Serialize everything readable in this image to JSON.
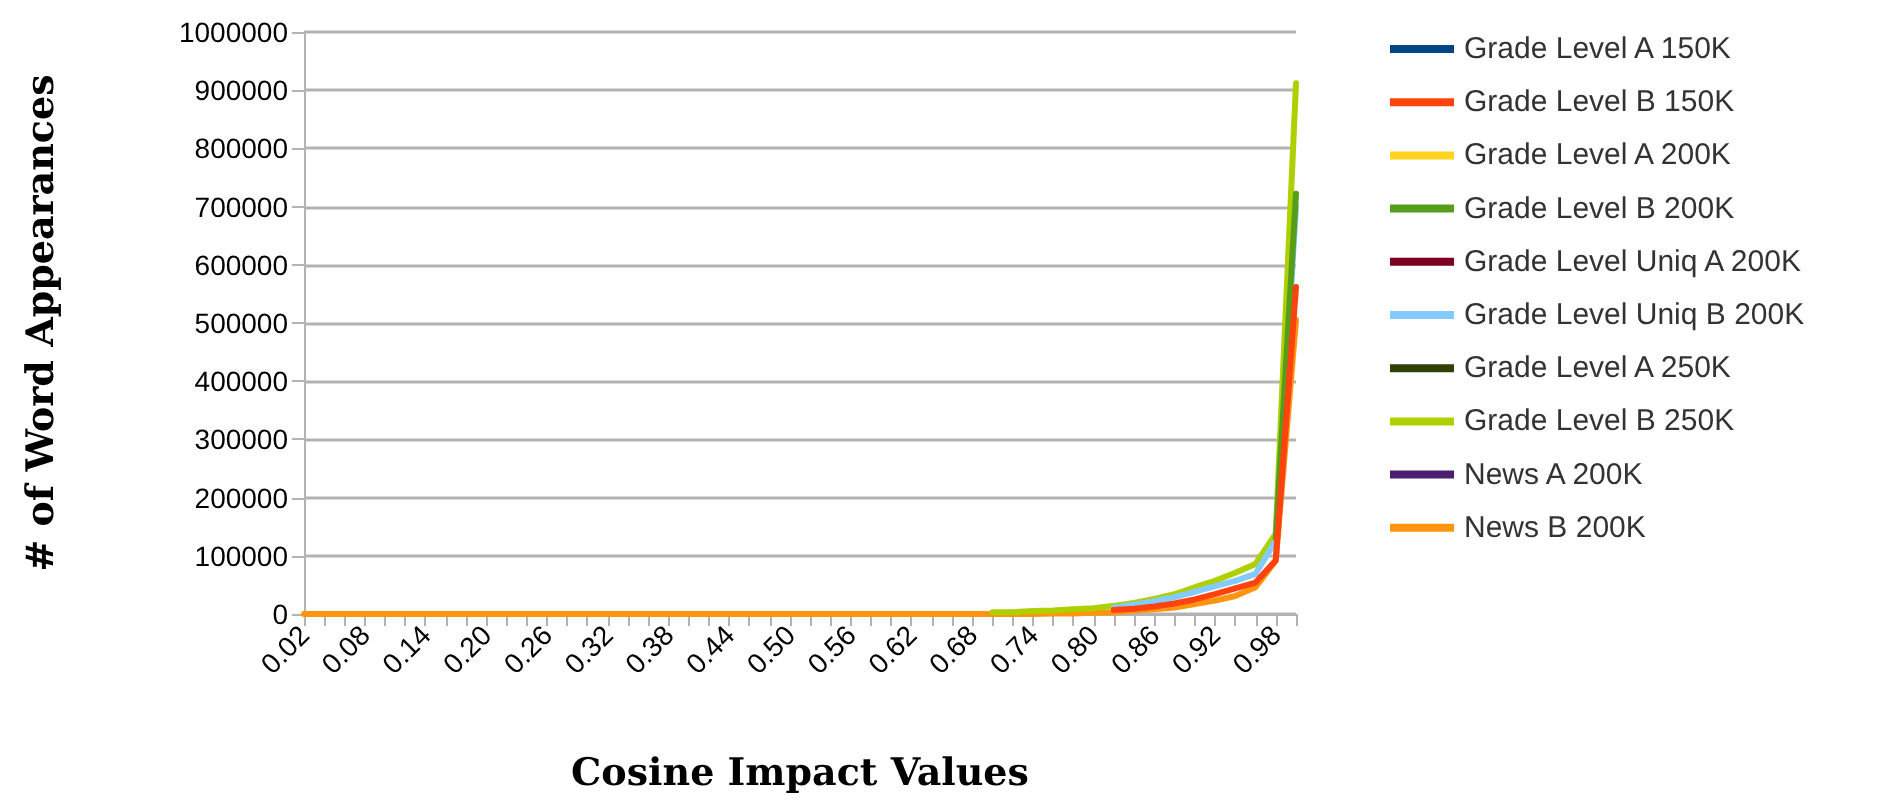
{
  "chart_data": {
    "type": "line",
    "xlabel": "Cosine Impact Values",
    "ylabel": "# of Word Appearances",
    "categories": [
      "0.02",
      null,
      null,
      "0.08",
      null,
      null,
      "0.14",
      null,
      null,
      "0.20",
      null,
      null,
      "0.26",
      null,
      null,
      "0.32",
      null,
      null,
      "0.38",
      null,
      null,
      "0.44",
      null,
      null,
      "0.50",
      null,
      null,
      "0.56",
      null,
      null,
      "0.62",
      null,
      null,
      "0.68",
      null,
      null,
      "0.74",
      null,
      null,
      "0.80",
      null,
      null,
      "0.86",
      null,
      null,
      "0.92",
      null,
      null,
      "0.98",
      null
    ],
    "series": [
      {
        "name": "Grade Level A 150K",
        "color": "#004586",
        "values": [
          null,
          null,
          null,
          null,
          null,
          null,
          null,
          null,
          null,
          null,
          null,
          null,
          null,
          null,
          null,
          null,
          null,
          null,
          null,
          null,
          null,
          null,
          null,
          null,
          null,
          null,
          null,
          null,
          null,
          null,
          null,
          null,
          null,
          null,
          null,
          null,
          null,
          null,
          null,
          null,
          null,
          null,
          null,
          null,
          null,
          null,
          null,
          null,
          null,
          null
        ]
      },
      {
        "name": "Grade Level B 150K",
        "color": "#ff420e",
        "values": [
          null,
          null,
          null,
          null,
          null,
          null,
          null,
          null,
          null,
          null,
          null,
          null,
          null,
          null,
          null,
          null,
          null,
          null,
          null,
          null,
          null,
          null,
          null,
          null,
          null,
          null,
          null,
          null,
          null,
          null,
          null,
          null,
          null,
          null,
          null,
          null,
          null,
          null,
          null,
          null,
          7000,
          9000,
          13000,
          18000,
          25000,
          34000,
          44000,
          54000,
          92000,
          562000
        ]
      },
      {
        "name": "Grade Level A 200K",
        "color": "#ffd320",
        "values": [
          null,
          null,
          null,
          null,
          null,
          null,
          null,
          null,
          null,
          null,
          null,
          null,
          null,
          null,
          null,
          null,
          null,
          null,
          null,
          null,
          null,
          null,
          null,
          null,
          null,
          null,
          null,
          null,
          null,
          null,
          null,
          null,
          null,
          null,
          null,
          null,
          null,
          null,
          null,
          null,
          null,
          null,
          null,
          null,
          null,
          null,
          null,
          null,
          null,
          null
        ]
      },
      {
        "name": "Grade Level B 200K",
        "color": "#579d1c",
        "values": [
          null,
          null,
          null,
          null,
          null,
          null,
          null,
          null,
          null,
          null,
          null,
          null,
          null,
          null,
          null,
          null,
          null,
          null,
          null,
          null,
          null,
          null,
          null,
          null,
          null,
          null,
          null,
          null,
          null,
          null,
          null,
          null,
          null,
          null,
          null,
          null,
          null,
          null,
          null,
          null,
          null,
          null,
          null,
          null,
          null,
          null,
          null,
          null,
          130000,
          722000
        ]
      },
      {
        "name": "Grade Level Uniq A 200K",
        "color": "#7e0021",
        "values": [
          null,
          null,
          null,
          null,
          null,
          null,
          null,
          null,
          null,
          null,
          null,
          null,
          null,
          null,
          null,
          null,
          null,
          null,
          null,
          null,
          null,
          null,
          null,
          null,
          null,
          null,
          null,
          null,
          null,
          null,
          null,
          null,
          null,
          null,
          null,
          null,
          null,
          null,
          null,
          null,
          null,
          null,
          null,
          null,
          null,
          null,
          null,
          null,
          null,
          null
        ]
      },
      {
        "name": "Grade Level Uniq B 200K",
        "color": "#83caff",
        "values": [
          null,
          null,
          null,
          null,
          null,
          null,
          null,
          null,
          null,
          null,
          null,
          null,
          null,
          null,
          null,
          null,
          null,
          null,
          null,
          null,
          null,
          null,
          null,
          null,
          null,
          null,
          null,
          null,
          null,
          null,
          null,
          null,
          null,
          null,
          null,
          null,
          null,
          null,
          null,
          null,
          11000,
          16000,
          22000,
          29000,
          38000,
          48000,
          57000,
          69000,
          126000,
          700000
        ]
      },
      {
        "name": "Grade Level A 250K",
        "color": "#314004",
        "values": [
          null,
          null,
          null,
          null,
          null,
          null,
          null,
          null,
          null,
          null,
          null,
          null,
          null,
          null,
          null,
          null,
          null,
          null,
          null,
          null,
          null,
          null,
          null,
          null,
          null,
          null,
          null,
          null,
          null,
          null,
          null,
          null,
          null,
          null,
          null,
          null,
          null,
          null,
          null,
          null,
          null,
          null,
          null,
          null,
          null,
          null,
          null,
          null,
          null,
          null
        ]
      },
      {
        "name": "Grade Level B 250K",
        "color": "#aecf00",
        "values": [
          null,
          null,
          null,
          null,
          null,
          null,
          null,
          null,
          null,
          null,
          null,
          null,
          null,
          null,
          null,
          null,
          null,
          null,
          null,
          null,
          null,
          null,
          null,
          null,
          null,
          null,
          null,
          null,
          null,
          null,
          null,
          null,
          null,
          null,
          3000,
          3000,
          5000,
          6000,
          8000,
          10000,
          14000,
          19000,
          26000,
          34000,
          46000,
          57000,
          71000,
          86000,
          138000,
          912000
        ]
      },
      {
        "name": "News A 200K",
        "color": "#4b1f6f",
        "values": [
          null,
          null,
          null,
          null,
          null,
          null,
          null,
          null,
          null,
          null,
          null,
          null,
          null,
          null,
          null,
          null,
          null,
          null,
          null,
          null,
          null,
          null,
          null,
          null,
          null,
          null,
          null,
          null,
          null,
          null,
          null,
          null,
          null,
          null,
          null,
          null,
          null,
          null,
          null,
          null,
          null,
          null,
          null,
          null,
          null,
          null,
          null,
          null,
          null,
          null
        ]
      },
      {
        "name": "News B 200K",
        "color": "#ff950e",
        "values": [
          0,
          0,
          0,
          0,
          0,
          0,
          0,
          0,
          0,
          0,
          0,
          0,
          0,
          0,
          0,
          0,
          0,
          0,
          0,
          0,
          0,
          0,
          0,
          0,
          0,
          0,
          0,
          0,
          0,
          0,
          0,
          0,
          0,
          0,
          0,
          0,
          0,
          1000,
          1000,
          2000,
          3000,
          6000,
          8000,
          11000,
          17000,
          23000,
          31000,
          46000,
          92000,
          505000
        ]
      }
    ],
    "ylim": [
      0,
      1000000
    ],
    "yticks": [
      0,
      100000,
      200000,
      300000,
      400000,
      500000,
      600000,
      700000,
      800000,
      900000,
      1000000
    ],
    "grid": "y",
    "legend": "right",
    "marker": "none",
    "line_style": "solid"
  }
}
